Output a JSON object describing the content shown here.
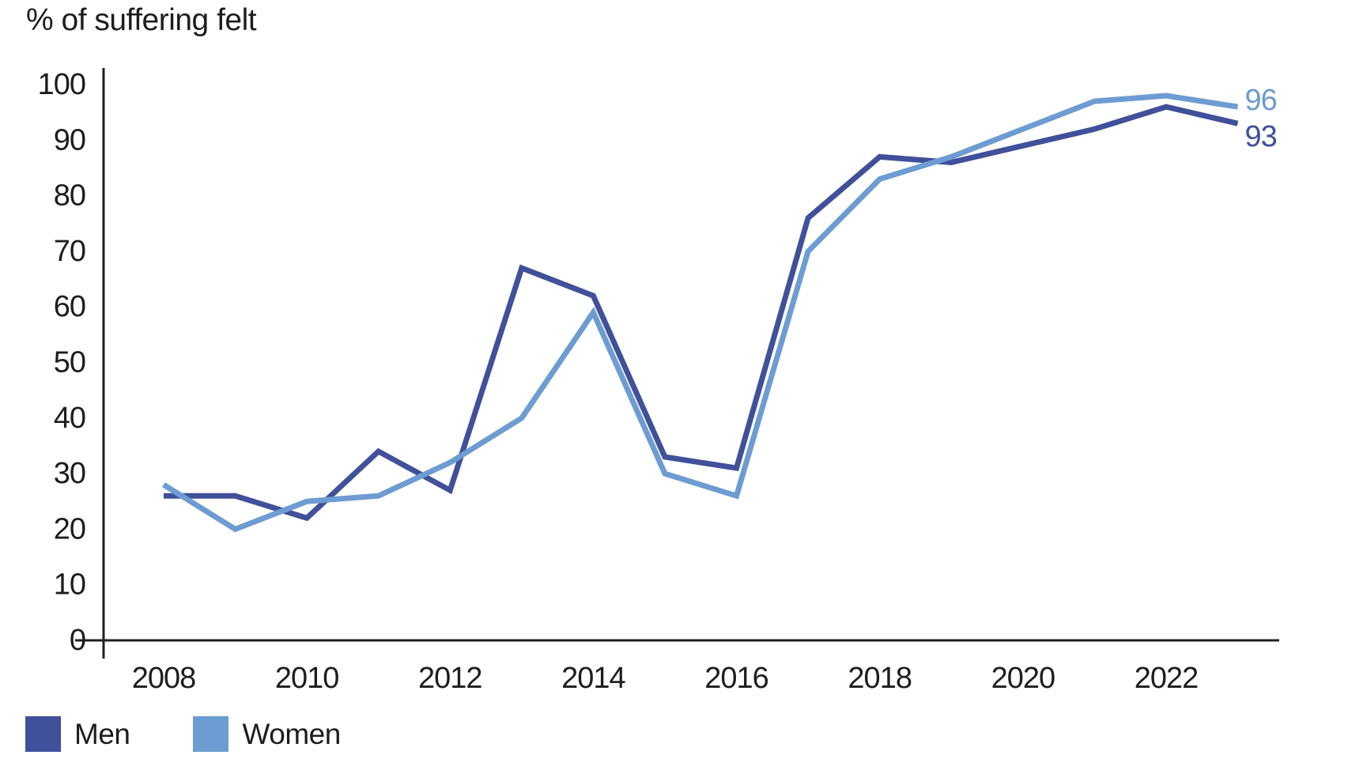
{
  "title": "% of suffering felt",
  "colors": {
    "men": "#40509A",
    "women": "#6C9CD2",
    "axis": "#231f20",
    "text": "#1d1d1d",
    "background": "#ffffff"
  },
  "legend": [
    {
      "label": "Men",
      "color_key": "men"
    },
    {
      "label": "Women",
      "color_key": "women"
    }
  ],
  "chart_data": {
    "type": "line",
    "title": "% of suffering felt",
    "xlabel": "",
    "ylabel": "% of suffering felt",
    "x": [
      2008,
      2009,
      2010,
      2011,
      2012,
      2013,
      2014,
      2015,
      2016,
      2017,
      2018,
      2019,
      2020,
      2021,
      2022,
      2023
    ],
    "series": [
      {
        "name": "Men",
        "color_key": "men",
        "values": [
          26,
          26,
          22,
          34,
          27,
          67,
          62,
          33,
          31,
          76,
          87,
          86,
          89,
          92,
          96,
          93
        ]
      },
      {
        "name": "Women",
        "color_key": "women",
        "values": [
          28,
          20,
          25,
          26,
          32,
          40,
          59,
          30,
          26,
          70,
          83,
          87,
          92,
          97,
          98,
          96
        ]
      }
    ],
    "ylim": [
      0,
      100
    ],
    "yticks": [
      0,
      10,
      20,
      30,
      40,
      50,
      60,
      70,
      80,
      90,
      100
    ],
    "xticks": [
      2008,
      2010,
      2012,
      2014,
      2016,
      2018,
      2020,
      2022
    ],
    "grid": false,
    "legend_position": "bottom-left",
    "end_labels": [
      {
        "series": "Women",
        "value": 96
      },
      {
        "series": "Men",
        "value": 93
      }
    ]
  }
}
